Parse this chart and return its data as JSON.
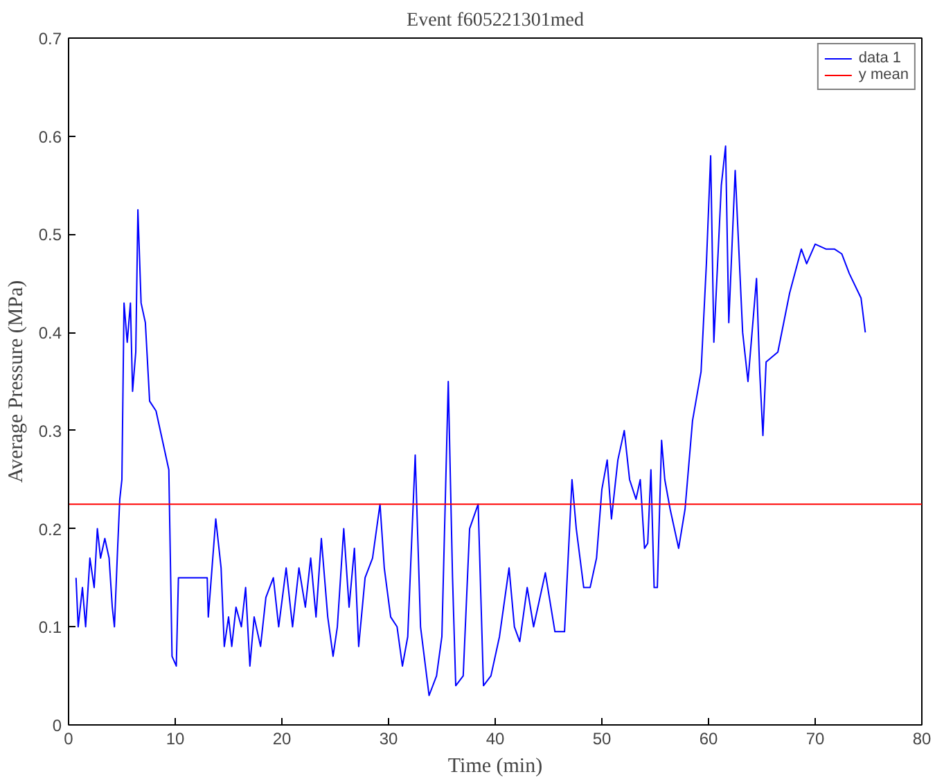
{
  "chart_data": {
    "type": "line",
    "title": "Event f605221301med",
    "xlabel": "Time (min)",
    "ylabel": "Average Pressure (MPa)",
    "xlim": [
      0,
      80
    ],
    "xticks": [
      0,
      10,
      20,
      30,
      40,
      50,
      60,
      70,
      80
    ],
    "ylim": [
      0,
      0.7
    ],
    "yticks": [
      0,
      0.1,
      0.2,
      0.3,
      0.4,
      0.5,
      0.6,
      0.7
    ],
    "grid": false,
    "legend": "top right",
    "marker": "none",
    "line_style": "solid",
    "x": [
      0.7,
      0.9,
      1.3,
      1.6,
      2.0,
      2.4,
      2.7,
      3.0,
      3.4,
      3.8,
      4.1,
      4.3,
      4.6,
      4.8,
      5.0,
      5.2,
      5.5,
      5.8,
      6.0,
      6.3,
      6.5,
      6.8,
      7.2,
      7.6,
      8.2,
      8.8,
      9.4,
      9.7,
      10.1,
      10.3,
      13.0,
      13.1,
      13.8,
      14.3,
      14.6,
      15.0,
      15.3,
      15.7,
      16.2,
      16.6,
      17.0,
      17.4,
      18.0,
      18.5,
      19.2,
      19.7,
      20.4,
      21.0,
      21.6,
      22.2,
      22.7,
      23.2,
      23.7,
      24.3,
      24.8,
      25.2,
      25.8,
      26.3,
      26.8,
      27.2,
      27.8,
      28.5,
      29.2,
      29.6,
      30.2,
      30.8,
      31.3,
      31.8,
      32.5,
      33.0,
      33.8,
      34.5,
      35.0,
      35.6,
      36.0,
      36.3,
      37.0,
      37.6,
      38.4,
      38.9,
      39.6,
      40.4,
      41.3,
      41.8,
      42.3,
      43.0,
      43.6,
      44.7,
      45.6,
      46.5,
      47.2,
      47.6,
      48.3,
      48.9,
      49.5,
      50.0,
      50.5,
      50.9,
      51.5,
      52.1,
      52.6,
      53.2,
      53.6,
      54.0,
      54.3,
      54.6,
      54.9,
      55.2,
      55.6,
      55.9,
      56.4,
      57.2,
      57.8,
      58.5,
      59.3,
      59.8,
      60.2,
      60.5,
      61.2,
      61.6,
      61.9,
      62.5,
      63.2,
      63.7,
      64.5,
      64.8,
      65.1,
      65.4,
      66.5,
      67.6,
      68.7,
      69.2,
      70.0,
      71.0,
      71.8,
      72.5,
      73.2,
      74.3,
      74.7
    ],
    "series": [
      {
        "name": "data 1",
        "color": "#0000ff",
        "values": [
          0.15,
          0.1,
          0.14,
          0.1,
          0.17,
          0.14,
          0.2,
          0.17,
          0.19,
          0.17,
          0.12,
          0.1,
          0.18,
          0.23,
          0.25,
          0.43,
          0.39,
          0.43,
          0.34,
          0.38,
          0.525,
          0.43,
          0.41,
          0.33,
          0.32,
          0.29,
          0.26,
          0.07,
          0.06,
          0.15,
          0.15,
          0.11,
          0.21,
          0.16,
          0.08,
          0.11,
          0.08,
          0.12,
          0.1,
          0.14,
          0.06,
          0.11,
          0.08,
          0.13,
          0.15,
          0.1,
          0.16,
          0.1,
          0.16,
          0.12,
          0.17,
          0.11,
          0.19,
          0.11,
          0.07,
          0.1,
          0.2,
          0.12,
          0.18,
          0.08,
          0.15,
          0.17,
          0.225,
          0.16,
          0.11,
          0.1,
          0.06,
          0.09,
          0.275,
          0.1,
          0.03,
          0.05,
          0.09,
          0.35,
          0.15,
          0.04,
          0.05,
          0.2,
          0.225,
          0.04,
          0.05,
          0.09,
          0.16,
          0.1,
          0.085,
          0.14,
          0.1,
          0.155,
          0.095,
          0.095,
          0.25,
          0.2,
          0.14,
          0.14,
          0.17,
          0.24,
          0.27,
          0.21,
          0.27,
          0.3,
          0.25,
          0.23,
          0.25,
          0.18,
          0.185,
          0.26,
          0.14,
          0.14,
          0.29,
          0.25,
          0.22,
          0.18,
          0.22,
          0.31,
          0.36,
          0.47,
          0.58,
          0.39,
          0.55,
          0.59,
          0.41,
          0.565,
          0.4,
          0.35,
          0.455,
          0.36,
          0.295,
          0.37,
          0.38,
          0.44,
          0.485,
          0.47,
          0.49,
          0.485,
          0.485,
          0.48,
          0.46,
          0.435,
          0.4
        ]
      }
    ],
    "ref_lines": [
      {
        "axis": "y",
        "value": 0.225,
        "label": "y mean",
        "color": "#ff0000",
        "line_style": "solid"
      }
    ]
  }
}
